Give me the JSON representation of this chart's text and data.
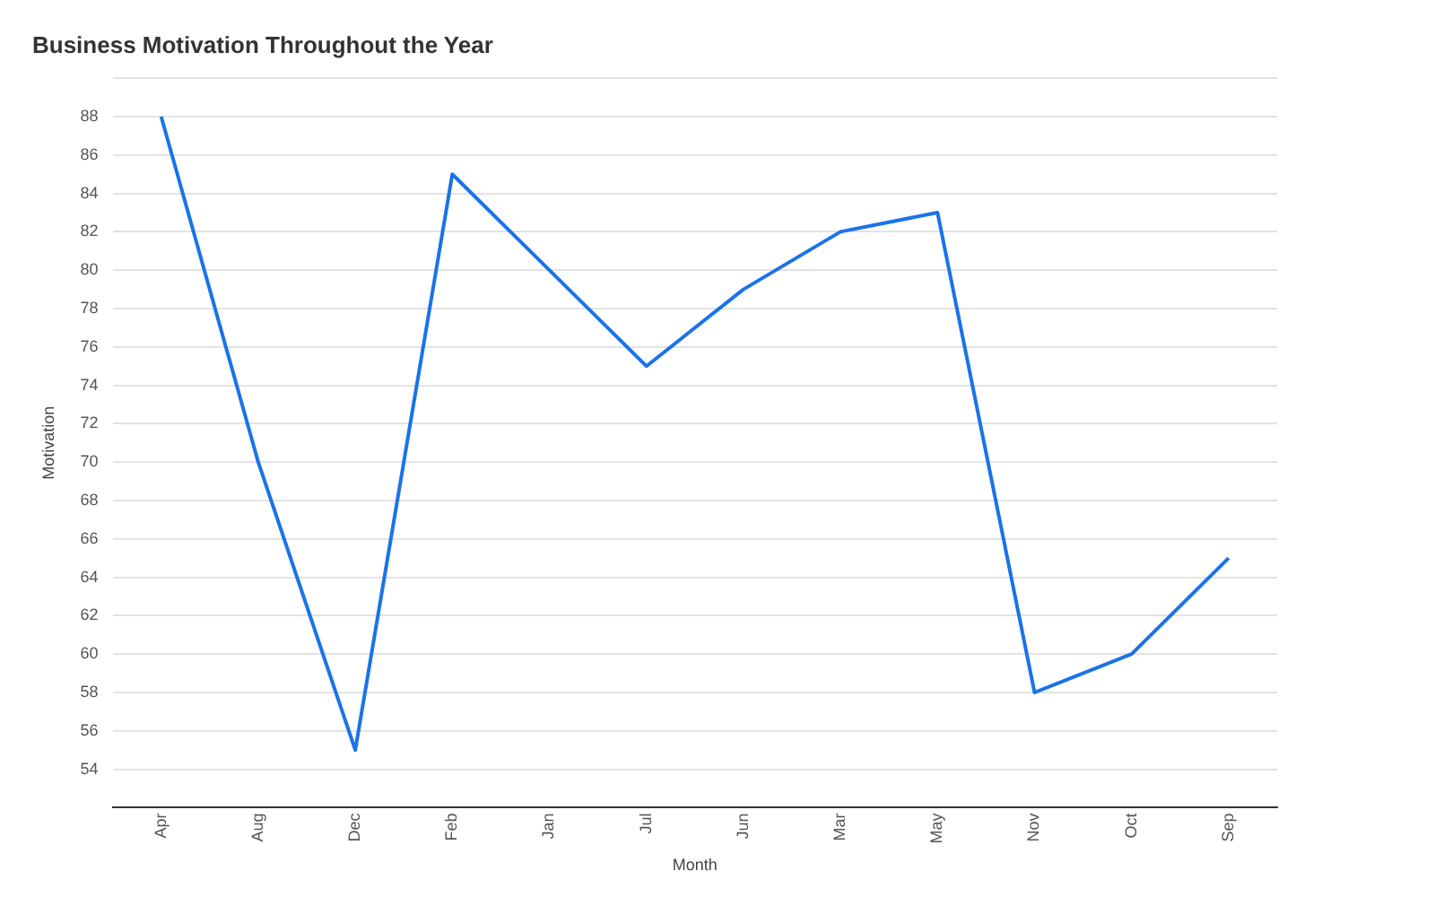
{
  "chart_data": {
    "type": "line",
    "title": "Business Motivation Throughout the Year",
    "xlabel": "Month",
    "ylabel": "Motivation",
    "categories": [
      "Apr",
      "Aug",
      "Dec",
      "Feb",
      "Jan",
      "Jul",
      "Jun",
      "Mar",
      "May",
      "Nov",
      "Oct",
      "Sep"
    ],
    "series": [
      {
        "color": "#1a73e8",
        "values": [
          88,
          70,
          55,
          85,
          80,
          75,
          79,
          82,
          83,
          58,
          60,
          65
        ]
      }
    ],
    "ylim": [
      52,
      90
    ],
    "yticks": [
      {
        "value": 52,
        "label": null
      },
      54,
      56,
      58,
      60,
      62,
      64,
      66,
      68,
      70,
      72,
      74,
      76,
      78,
      80,
      82,
      84,
      86,
      88,
      {
        "value": 90,
        "label": null
      }
    ],
    "grid": "y",
    "legend": false,
    "marker": "none",
    "line_style": "solid"
  }
}
